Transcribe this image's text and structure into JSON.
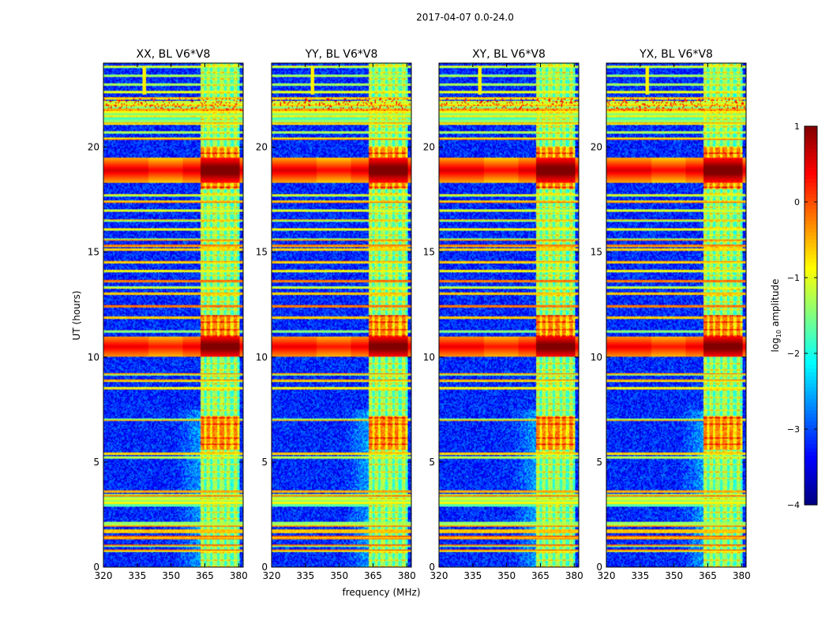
{
  "chart_data": {
    "type": "heatmap",
    "suptitle": "2017-04-07 0.0-24.0",
    "xlabel": "frequency (MHz)",
    "ylabel": "UT (hours)",
    "xlim": [
      320,
      382
    ],
    "ylim": [
      0,
      24
    ],
    "x_ticks": [
      320,
      335,
      350,
      365,
      380
    ],
    "y_ticks": [
      0,
      5,
      10,
      15,
      20
    ],
    "panels": [
      {
        "title": "XX, BL V6*V8",
        "brightness": 1.0
      },
      {
        "title": "YY, BL V6*V8",
        "brightness": 0.85
      },
      {
        "title": "XY, BL V6*V8",
        "brightness": 0.95
      },
      {
        "title": "YX, BL V6*V8",
        "brightness": 0.88
      }
    ],
    "colorbar": {
      "label": "log10 amplitude",
      "label_base": "log",
      "label_sub": "10",
      "label_rest": " amplitude",
      "vmin": -4,
      "vmax": 1,
      "ticks": [
        1,
        0,
        -1,
        -2,
        -3,
        -4
      ],
      "tick_labels": [
        "1",
        "0",
        "−1",
        "−2",
        "−3",
        "−4"
      ],
      "colormap": "jet"
    },
    "features": {
      "noise_floor": -3.2,
      "band_edges_mhz": [
        363,
        380.5
      ],
      "band_level": -1.3,
      "channel_lines_mhz": [
        365,
        368,
        371,
        374,
        377,
        380
      ],
      "strong_rows_ut": [
        {
          "ut": 18.9,
          "width": 0.6,
          "level": 0.8
        },
        {
          "ut": 10.5,
          "width": 0.5,
          "level": 0.7
        }
      ],
      "band_enhanced_ut": [
        [
          5.6,
          7.2
        ],
        [
          11.0,
          12.0
        ],
        [
          18.0,
          20.0
        ]
      ],
      "rfi_rows_ut": [
        0.8,
        1.0,
        1.4,
        1.7,
        2.0,
        2.1,
        3.4,
        3.6,
        5.2,
        5.4,
        7.0,
        8.5,
        8.9,
        9.2,
        11.2,
        11.9,
        12.4,
        13.0,
        13.3,
        13.6,
        14.1,
        14.5,
        15.1,
        15.3,
        15.6,
        16.1,
        16.5,
        17.0,
        17.4,
        17.7,
        20.4,
        20.7,
        21.1,
        21.5,
        21.8,
        22.0,
        22.3,
        22.6,
        23.0,
        23.4,
        23.8
      ],
      "broadband_bands_ut": [
        [
          2.9,
          3.3
        ],
        [
          21.2,
          22.2
        ]
      ]
    }
  }
}
